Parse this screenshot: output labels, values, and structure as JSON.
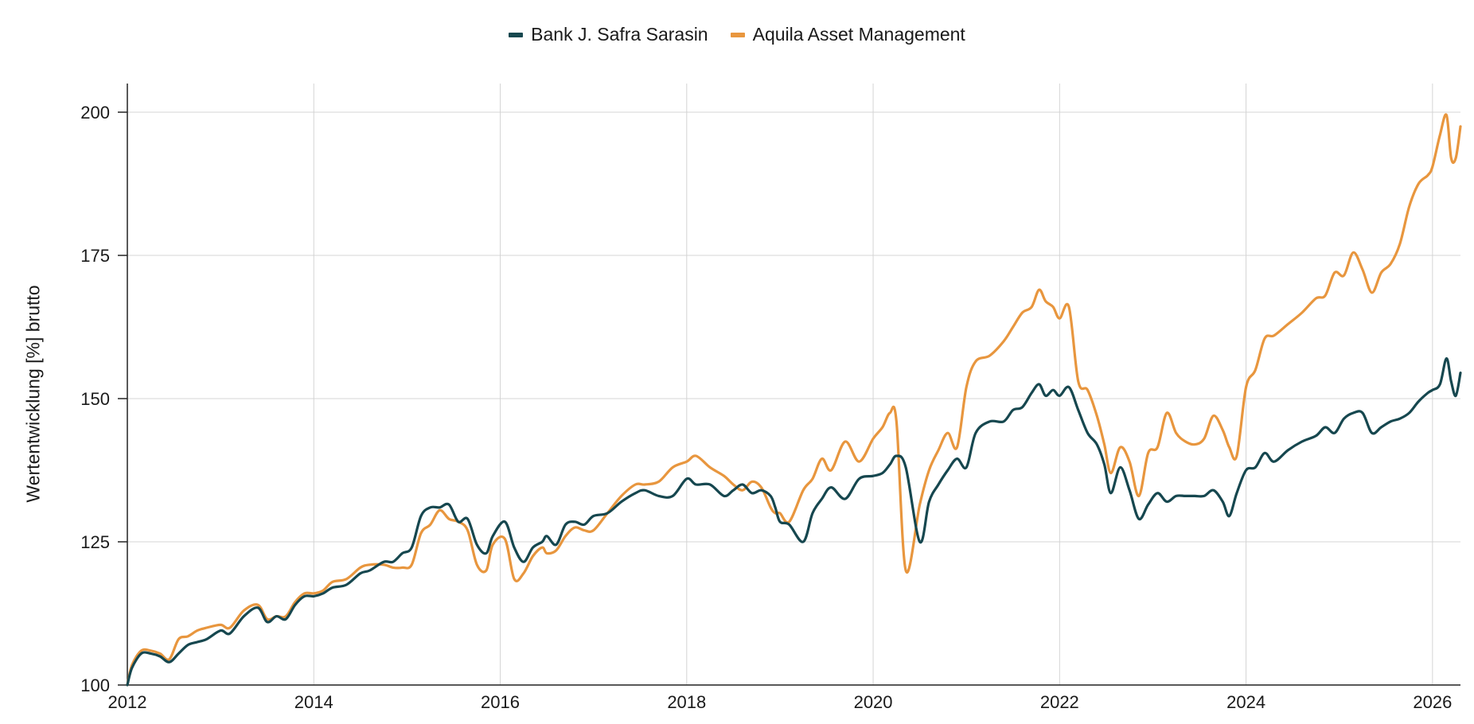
{
  "chart_data": {
    "type": "line",
    "xlabel": "",
    "ylabel": "Wertentwicklung [%] brutto",
    "xlim": [
      2012.0,
      2026.3
    ],
    "ylim": [
      100,
      205
    ],
    "x_ticks": [
      2012,
      2014,
      2016,
      2018,
      2020,
      2022,
      2024,
      2026
    ],
    "y_ticks": [
      100,
      125,
      150,
      175,
      200
    ],
    "grid": true,
    "legend_position": "top-center",
    "series": [
      {
        "name": "Bank J. Safra Sarasin",
        "color": "#16474f",
        "x": [
          2012.0,
          2012.05,
          2012.15,
          2012.25,
          2012.35,
          2012.45,
          2012.55,
          2012.65,
          2012.75,
          2012.85,
          2013.0,
          2013.1,
          2013.25,
          2013.4,
          2013.5,
          2013.6,
          2013.7,
          2013.8,
          2013.9,
          2014.0,
          2014.1,
          2014.2,
          2014.35,
          2014.5,
          2014.6,
          2014.75,
          2014.85,
          2014.95,
          2015.05,
          2015.15,
          2015.25,
          2015.35,
          2015.45,
          2015.55,
          2015.65,
          2015.75,
          2015.85,
          2015.92,
          2016.05,
          2016.15,
          2016.25,
          2016.35,
          2016.45,
          2016.5,
          2016.6,
          2016.7,
          2016.8,
          2016.9,
          2017.0,
          2017.15,
          2017.3,
          2017.45,
          2017.55,
          2017.7,
          2017.85,
          2018.0,
          2018.1,
          2018.25,
          2018.4,
          2018.5,
          2018.6,
          2018.7,
          2018.8,
          2018.9,
          2018.95,
          2019.0,
          2019.1,
          2019.25,
          2019.35,
          2019.45,
          2019.55,
          2019.7,
          2019.85,
          2020.0,
          2020.1,
          2020.18,
          2020.25,
          2020.35,
          2020.5,
          2020.6,
          2020.7,
          2020.8,
          2020.9,
          2021.0,
          2021.1,
          2021.25,
          2021.4,
          2021.5,
          2021.6,
          2021.7,
          2021.78,
          2021.85,
          2021.93,
          2022.0,
          2022.1,
          2022.2,
          2022.3,
          2022.4,
          2022.48,
          2022.55,
          2022.65,
          2022.75,
          2022.85,
          2022.95,
          2023.05,
          2023.15,
          2023.25,
          2023.35,
          2023.45,
          2023.55,
          2023.65,
          2023.75,
          2023.82,
          2023.9,
          2024.0,
          2024.1,
          2024.2,
          2024.3,
          2024.45,
          2024.6,
          2024.75,
          2024.85,
          2024.95,
          2025.05,
          2025.15,
          2025.25,
          2025.35,
          2025.45,
          2025.55,
          2025.65,
          2025.75,
          2025.85,
          2025.95,
          2026.0,
          2026.08,
          2026.15,
          2026.2,
          2026.25,
          2026.3
        ],
        "values": [
          100,
          103,
          105.5,
          105.5,
          105,
          104,
          105.5,
          107,
          107.5,
          108,
          109.5,
          109,
          112,
          113.5,
          111,
          112,
          111.5,
          114,
          115.5,
          115.5,
          116,
          117,
          117.5,
          119.5,
          120,
          121.5,
          121.5,
          123,
          124,
          129.5,
          131,
          131,
          131.5,
          128.5,
          129,
          124.5,
          123,
          126,
          128.5,
          124,
          121.5,
          124,
          125,
          126,
          124.5,
          128,
          128.5,
          128,
          129.5,
          130,
          132,
          133.5,
          134,
          133,
          133,
          136,
          135,
          135,
          133,
          134,
          135,
          133.5,
          134,
          133,
          131,
          128.5,
          128,
          125,
          130,
          132.5,
          134.5,
          132.5,
          136,
          136.5,
          137,
          138.5,
          140,
          138,
          125,
          132,
          135,
          137.5,
          139.5,
          138,
          144,
          146,
          146,
          148,
          148.5,
          151,
          152.5,
          150.5,
          151.5,
          150.5,
          152,
          148,
          144,
          142,
          138.5,
          133.5,
          138,
          134,
          129,
          131.5,
          133.5,
          132,
          133,
          133,
          133,
          133,
          134,
          132,
          129.5,
          133.5,
          137.5,
          138,
          140.5,
          139,
          141,
          142.5,
          143.5,
          145,
          144,
          146.5,
          147.5,
          147.5,
          144,
          145,
          146,
          146.5,
          147.5,
          149.5,
          151,
          151.5,
          152.5,
          157,
          153,
          150.5,
          154.5
        ]
      },
      {
        "name": "Aquila Asset Management",
        "color": "#e8963e",
        "x": [
          2012.0,
          2012.05,
          2012.15,
          2012.25,
          2012.35,
          2012.45,
          2012.55,
          2012.65,
          2012.75,
          2012.85,
          2013.0,
          2013.1,
          2013.25,
          2013.4,
          2013.5,
          2013.6,
          2013.7,
          2013.8,
          2013.9,
          2014.0,
          2014.1,
          2014.2,
          2014.35,
          2014.5,
          2014.6,
          2014.75,
          2014.85,
          2014.95,
          2015.05,
          2015.15,
          2015.25,
          2015.35,
          2015.45,
          2015.55,
          2015.65,
          2015.75,
          2015.85,
          2015.92,
          2016.05,
          2016.15,
          2016.25,
          2016.35,
          2016.45,
          2016.5,
          2016.6,
          2016.7,
          2016.8,
          2016.9,
          2017.0,
          2017.15,
          2017.3,
          2017.45,
          2017.55,
          2017.7,
          2017.85,
          2018.0,
          2018.1,
          2018.25,
          2018.4,
          2018.5,
          2018.6,
          2018.7,
          2018.8,
          2018.9,
          2018.95,
          2019.0,
          2019.1,
          2019.25,
          2019.35,
          2019.45,
          2019.55,
          2019.7,
          2019.85,
          2020.0,
          2020.1,
          2020.18,
          2020.25,
          2020.35,
          2020.5,
          2020.6,
          2020.7,
          2020.8,
          2020.9,
          2021.0,
          2021.1,
          2021.25,
          2021.4,
          2021.5,
          2021.6,
          2021.7,
          2021.78,
          2021.85,
          2021.93,
          2022.0,
          2022.1,
          2022.2,
          2022.3,
          2022.4,
          2022.48,
          2022.55,
          2022.65,
          2022.75,
          2022.85,
          2022.95,
          2023.05,
          2023.15,
          2023.25,
          2023.35,
          2023.45,
          2023.55,
          2023.65,
          2023.75,
          2023.82,
          2023.9,
          2024.0,
          2024.1,
          2024.2,
          2024.3,
          2024.45,
          2024.6,
          2024.75,
          2024.85,
          2024.95,
          2025.05,
          2025.15,
          2025.25,
          2025.35,
          2025.45,
          2025.55,
          2025.65,
          2025.75,
          2025.85,
          2025.95,
          2026.0,
          2026.08,
          2026.15,
          2026.2,
          2026.25,
          2026.3
        ],
        "values": [
          100,
          103.5,
          106,
          106,
          105.5,
          104.5,
          108,
          108.5,
          109.5,
          110,
          110.5,
          110,
          113,
          114,
          111.5,
          112,
          112,
          114.5,
          116,
          116,
          116.5,
          118,
          118.5,
          120.5,
          121,
          121,
          120.5,
          120.5,
          121,
          126.5,
          128,
          130.5,
          129,
          128.5,
          127,
          121,
          120,
          124.5,
          125.5,
          118.5,
          119.5,
          122.5,
          124,
          123,
          123.5,
          126,
          127.5,
          127,
          127,
          130,
          133,
          135,
          135,
          135.5,
          138,
          139,
          140,
          138,
          136.5,
          135,
          134,
          135.5,
          134.5,
          131,
          130,
          130,
          128.5,
          134,
          136,
          139.5,
          137.5,
          142.5,
          139,
          143,
          145,
          147.5,
          146,
          120,
          131.5,
          137.5,
          141,
          144,
          141.5,
          152,
          156.5,
          157.5,
          160,
          162.5,
          165,
          166,
          169,
          167,
          166,
          164,
          166,
          153,
          151.5,
          147,
          142,
          137,
          141.5,
          139,
          133,
          140.5,
          141.5,
          147.5,
          144,
          142.5,
          142,
          143,
          147,
          144.5,
          141.5,
          140,
          152,
          155,
          160.5,
          161,
          163,
          165,
          167.5,
          168,
          172,
          171.5,
          175.5,
          172.5,
          168.5,
          172,
          173.5,
          177,
          183.5,
          187.5,
          189,
          190.5,
          196,
          199.5,
          192,
          192,
          197.5
        ]
      }
    ]
  }
}
